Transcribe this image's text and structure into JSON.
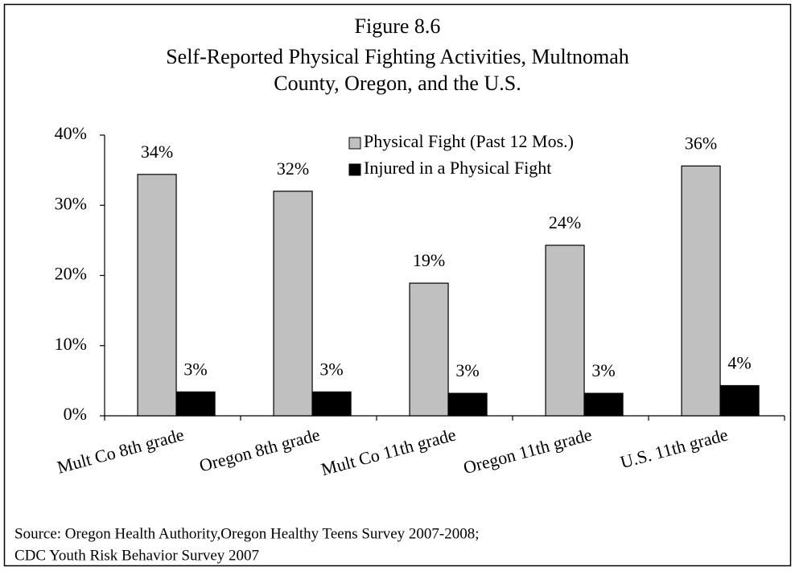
{
  "chart_data": {
    "type": "bar",
    "title": [
      "Figure 8.6",
      "Self-Reported Physical Fighting Activities, Multnomah",
      "County, Oregon, and the U.S."
    ],
    "categories": [
      "Mult Co 8th grade",
      "Oregon 8th grade",
      "Mult Co 11th grade",
      "Oregon 11th grade",
      "U.S. 11th grade"
    ],
    "series": [
      {
        "name": "Physical Fight (Past 12 Mos.)",
        "color": "#c0c0c0",
        "values": [
          34.4,
          32,
          18.9,
          24.3,
          35.6
        ],
        "value_labels": [
          "34%",
          "32%",
          "19%",
          "24%",
          "36%"
        ]
      },
      {
        "name": "Injured in a Physical Fight",
        "color": "#000000",
        "values": [
          3.4,
          3.4,
          3.2,
          3.2,
          4.3
        ],
        "value_labels": [
          "3%",
          "3%",
          "3%",
          "3%",
          "4%"
        ]
      }
    ],
    "ylim": [
      0,
      40
    ],
    "yticks": [
      {
        "value": 0,
        "label": "0%"
      },
      {
        "value": 10,
        "label": "10%"
      },
      {
        "value": 20,
        "label": "20%"
      },
      {
        "value": 30,
        "label": "30%"
      },
      {
        "value": 40,
        "label": "40%"
      }
    ],
    "legend": "top",
    "source": [
      "Source: Oregon Health Authority,Oregon Healthy Teens Survey 2007-2008;",
      "CDC Youth Risk Behavior Survey 2007"
    ]
  }
}
